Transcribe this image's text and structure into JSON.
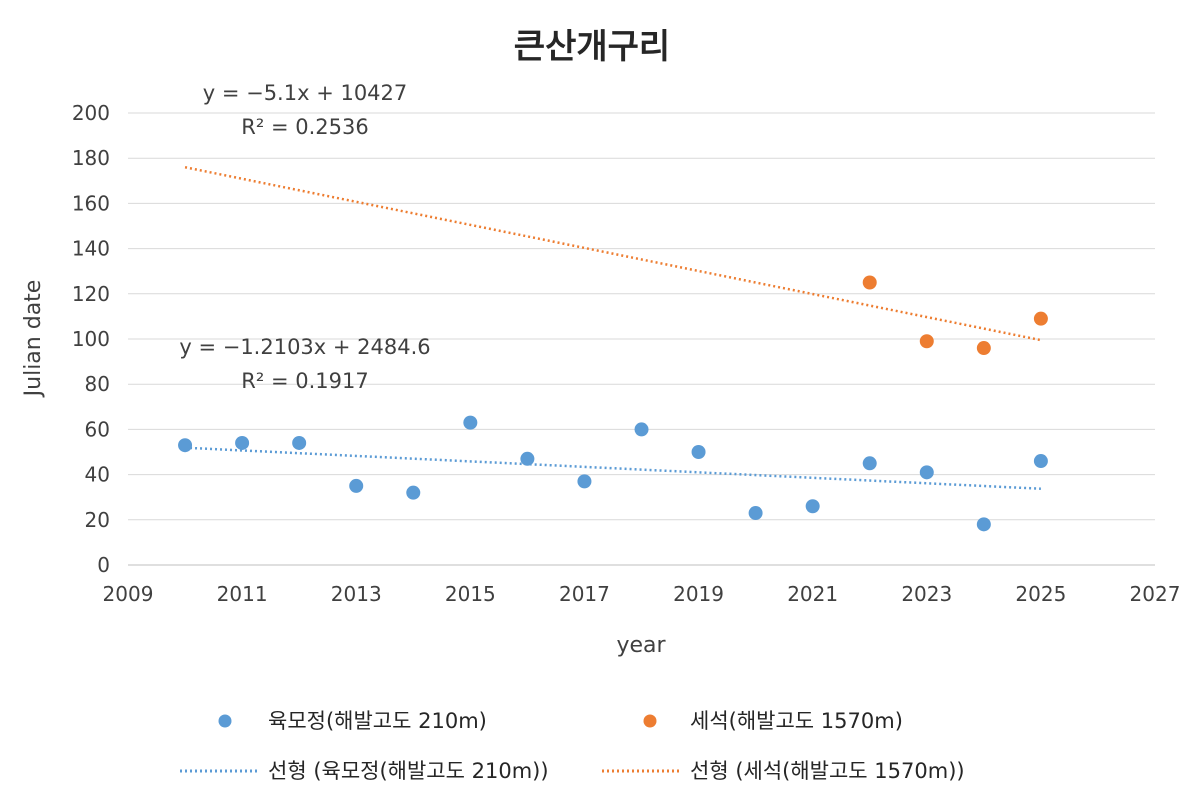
{
  "chart_data": {
    "type": "scatter",
    "title": "큰산개구리",
    "xlabel": "year",
    "ylabel": "Julian date",
    "xlim": [
      2009,
      2027
    ],
    "ylim": [
      0,
      200
    ],
    "x_ticks": [
      "2009",
      "2011",
      "2013",
      "2015",
      "2017",
      "2019",
      "2021",
      "2023",
      "2025",
      "2027"
    ],
    "y_ticks": [
      "0",
      "20",
      "40",
      "60",
      "80",
      "100",
      "120",
      "140",
      "160",
      "180",
      "200"
    ],
    "grid": "horizontal",
    "legend_position": "bottom",
    "series": [
      {
        "name": "육모정(해발고도 210m)",
        "color": "#5B9BD5",
        "points": [
          {
            "x": 2010,
            "y": 53
          },
          {
            "x": 2011,
            "y": 54
          },
          {
            "x": 2012,
            "y": 54
          },
          {
            "x": 2013,
            "y": 35
          },
          {
            "x": 2014,
            "y": 32
          },
          {
            "x": 2015,
            "y": 63
          },
          {
            "x": 2016,
            "y": 47
          },
          {
            "x": 2017,
            "y": 37
          },
          {
            "x": 2018,
            "y": 60
          },
          {
            "x": 2019,
            "y": 50
          },
          {
            "x": 2020,
            "y": 23
          },
          {
            "x": 2021,
            "y": 26
          },
          {
            "x": 2022,
            "y": 45
          },
          {
            "x": 2023,
            "y": 41
          },
          {
            "x": 2024,
            "y": 18
          },
          {
            "x": 2025,
            "y": 46
          }
        ]
      },
      {
        "name": "세석(해발고도 1570m)",
        "color": "#ED7D31",
        "points": [
          {
            "x": 2022,
            "y": 125
          },
          {
            "x": 2023,
            "y": 99
          },
          {
            "x": 2024,
            "y": 96
          },
          {
            "x": 2025,
            "y": 109
          }
        ]
      }
    ],
    "trendlines": [
      {
        "name": "선형 (육모정(해발고도 210m))",
        "color": "#5B9BD5",
        "slope": -1.2103,
        "intercept": 2484.6,
        "x_range": [
          2010,
          2025
        ],
        "equation": "y = −1.2103x + 2484.6",
        "r2": "R² = 0.1917"
      },
      {
        "name": "선형 (세석(해발고도 1570m))",
        "color": "#ED7D31",
        "slope": -5.1,
        "intercept": 10427,
        "x_range": [
          2010,
          2025
        ],
        "equation": "y = −5.1x + 10427",
        "r2": "R² = 0.2536"
      }
    ]
  }
}
